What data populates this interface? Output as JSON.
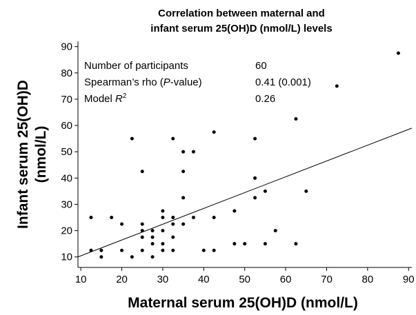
{
  "chart_data": {
    "type": "scatter",
    "title": [
      "Correlation between maternal and",
      "infant serum 25(OH)D (nmol/L) levels"
    ],
    "xlabel": "Maternal serum 25(OH)D (nmol/L)",
    "ylabel": [
      "Infant serum 25(OH)D",
      "(nmol/L)"
    ],
    "color": "#000000",
    "x": [
      12.5,
      12.5,
      15,
      15,
      17.5,
      20,
      20,
      22.5,
      22.5,
      25,
      25,
      25,
      25,
      25,
      27.5,
      27.5,
      27.5,
      27.5,
      30,
      30,
      30,
      30,
      30,
      32.5,
      32.5,
      32.5,
      32.5,
      32.5,
      35,
      35,
      35,
      35,
      37.5,
      37.5,
      40,
      42.5,
      42.5,
      42.5,
      47.5,
      47.5,
      50,
      52.5,
      52.5,
      52.5,
      55,
      55,
      57.5,
      62.5,
      62.5,
      65,
      72.5,
      87.5
    ],
    "values": [
      25,
      12.5,
      10,
      12.5,
      25,
      22.5,
      12.5,
      55,
      10,
      42.5,
      22.5,
      20,
      17.5,
      12.5,
      20,
      17.5,
      15,
      10,
      27.5,
      25,
      20,
      15,
      12.5,
      55,
      25,
      22.5,
      17.5,
      12.5,
      50,
      42.5,
      32.5,
      22.5,
      50,
      25,
      12.5,
      57.5,
      25,
      12.5,
      27.5,
      15,
      15,
      55,
      40,
      32.5,
      35,
      15,
      20,
      62.5,
      15,
      35,
      75,
      87.5
    ],
    "fit": {
      "x": [
        9.3,
        90.8
      ],
      "y": [
        10,
        59
      ]
    },
    "xlim": [
      9.3,
      90.8
    ],
    "xticks": [
      10,
      20,
      30,
      40,
      50,
      60,
      70,
      80,
      90
    ],
    "ylim": [
      6,
      92
    ],
    "yticks": [
      10,
      20,
      30,
      40,
      50,
      60,
      70,
      80,
      90
    ],
    "annotations": [
      {
        "label": [
          "Number of participants"
        ],
        "value": "60"
      },
      {
        "label": [
          "Spearman’s rho (",
          "P",
          "-value)"
        ],
        "value": "0.41 (0.001)"
      },
      {
        "label": [
          "Model ",
          "R",
          "2"
        ],
        "value": "0.26"
      }
    ]
  }
}
